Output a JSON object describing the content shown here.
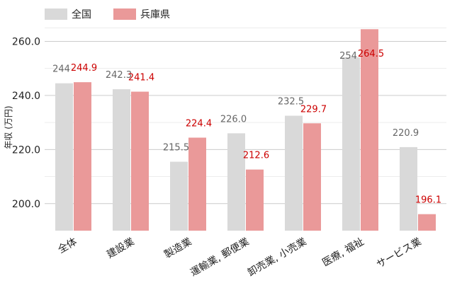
{
  "chart_data": {
    "type": "bar",
    "ylabel": "年収 (万円)",
    "ylim": [
      190,
      263
    ],
    "yticks": [
      "200.0",
      "220.0",
      "240.0",
      "260.0"
    ],
    "ytick_values": [
      200,
      220,
      240,
      260
    ],
    "grid": true,
    "legend_position": "top-left",
    "categories": [
      "全体",
      "建設業",
      "製造業",
      "運輸業, 郵便業",
      "卸売業, 小売業",
      "医療, 福祉",
      "サービス業"
    ],
    "series": [
      {
        "name": "全国",
        "color": "#d9d9d9",
        "label_color": "#666666",
        "values": [
          244.5,
          242.3,
          215.5,
          226.0,
          232.5,
          254.1,
          220.9
        ],
        "labels": [
          "244",
          "242.3",
          "215.5",
          "226.0",
          "232.5",
          "254",
          "220.9"
        ]
      },
      {
        "name": "兵庫県",
        "color": "#ea9999",
        "label_color": "#cc0000",
        "values": [
          244.9,
          241.4,
          224.4,
          212.6,
          229.7,
          264.5,
          196.1
        ],
        "labels": [
          "244.9",
          "241.4",
          "224.4",
          "212.6",
          "229.7",
          "264.5",
          "196.1"
        ]
      }
    ]
  }
}
